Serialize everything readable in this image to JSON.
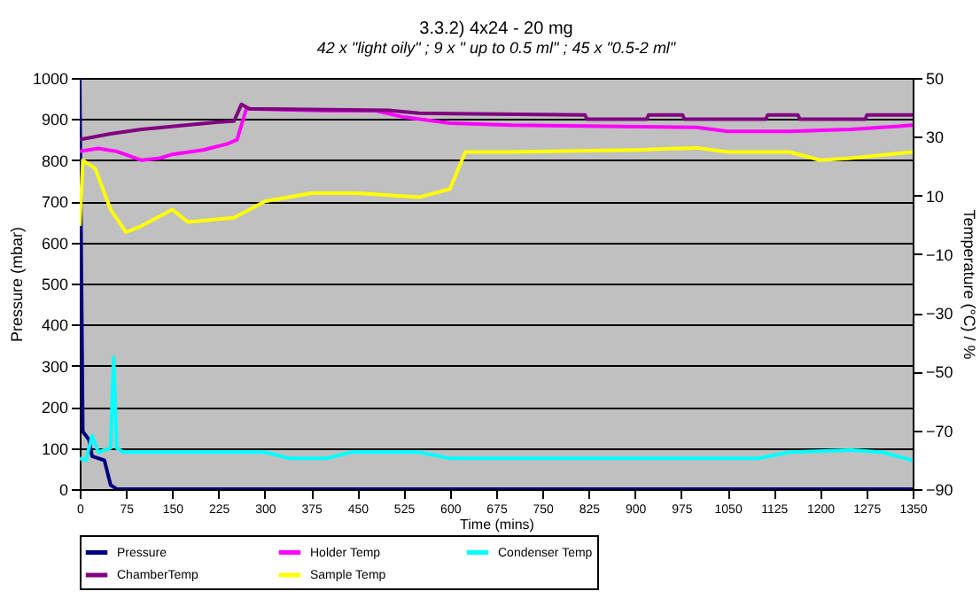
{
  "chart_data": {
    "type": "line",
    "title": "3.3.2) 4x24 - 20 mg",
    "subtitle": "42 x \"light oily\" ; 9 x \" up to 0.5 ml\" ; 45 x \"0.5-2 ml\"",
    "xlabel": "Time (mins)",
    "ylabel": "Pressure (mbar)",
    "y2label": "Temperature (°C) / %",
    "xlim": [
      0,
      1350
    ],
    "xticks": [
      0,
      75,
      150,
      225,
      300,
      375,
      450,
      525,
      600,
      675,
      750,
      825,
      900,
      975,
      1050,
      1125,
      1200,
      1275,
      1350
    ],
    "ylim": [
      0,
      1000
    ],
    "yticks": [
      0,
      100,
      200,
      300,
      400,
      500,
      600,
      700,
      800,
      900,
      1000
    ],
    "y2lim": [
      -90,
      50
    ],
    "y2ticks": [
      -90,
      -70,
      -50,
      -30,
      -10,
      10,
      30,
      50
    ],
    "grid": "y",
    "legend": "bottom",
    "series": [
      {
        "name": "Pressure",
        "color": "#000080",
        "x": [
          0,
          2,
          5,
          15,
          20,
          40,
          50,
          60,
          1350
        ],
        "values": [
          1000,
          640,
          140,
          120,
          80,
          70,
          10,
          0,
          0
        ]
      },
      {
        "name": "Holder Temp",
        "color": "#ff00ff",
        "axis": "y2",
        "x": [
          0,
          30,
          60,
          100,
          130,
          150,
          200,
          240,
          255,
          270,
          400,
          480,
          525,
          600,
          700,
          1000,
          1050,
          1150,
          1250,
          1350
        ],
        "values": [
          25,
          26,
          25,
          22,
          22.7,
          24,
          25.5,
          27.6,
          29,
          39.5,
          38.8,
          38.8,
          36.7,
          34.6,
          33.9,
          33.2,
          31.8,
          31.8,
          32.5,
          33.9
        ]
      },
      {
        "name": "Condenser Temp",
        "color": "#00ffff",
        "axis": "y2",
        "x": [
          0,
          10,
          20,
          30,
          50,
          55,
          60,
          70,
          300,
          340,
          400,
          440,
          550,
          600,
          900,
          1100,
          1150,
          1250,
          1300,
          1350
        ],
        "values": [
          -79.5,
          -80.2,
          -71.8,
          -77.4,
          -76,
          -45.2,
          -76,
          -77.4,
          -77.4,
          -79.5,
          -79.5,
          -77.4,
          -77.4,
          -79.5,
          -79.5,
          -79.5,
          -77.4,
          -76.7,
          -77.4,
          -80.2
        ]
      },
      {
        "name": "ChamberTemp",
        "color": "#800080",
        "axis": "y2",
        "x": [
          0,
          50,
          100,
          225,
          250,
          262,
          275,
          500,
          550,
          819,
          822,
          919,
          922,
          977,
          980,
          1112,
          1115,
          1164,
          1167,
          1273,
          1276,
          1350
        ],
        "values": [
          29,
          31,
          32.5,
          35,
          35.3,
          41,
          39.5,
          39,
          38,
          37.4,
          36,
          36,
          37.4,
          37.4,
          36,
          36,
          37.4,
          37.4,
          36,
          36,
          37.4,
          37.4
        ]
      },
      {
        "name": "Sample Temp",
        "color": "#ffff00",
        "axis": "y2",
        "x": [
          0,
          5,
          25,
          50,
          75,
          100,
          150,
          175,
          250,
          300,
          375,
          450,
          550,
          600,
          625,
          700,
          900,
          1000,
          1050,
          1150,
          1200,
          1250,
          1350
        ],
        "values": [
          -0.4,
          22,
          19.2,
          5.2,
          -2.5,
          -0.4,
          5.2,
          1,
          2.4,
          8,
          10.8,
          10.8,
          9.4,
          12.2,
          24.8,
          24.8,
          25.5,
          26.2,
          24.8,
          24.8,
          22,
          22.7,
          24.8
        ]
      }
    ]
  }
}
